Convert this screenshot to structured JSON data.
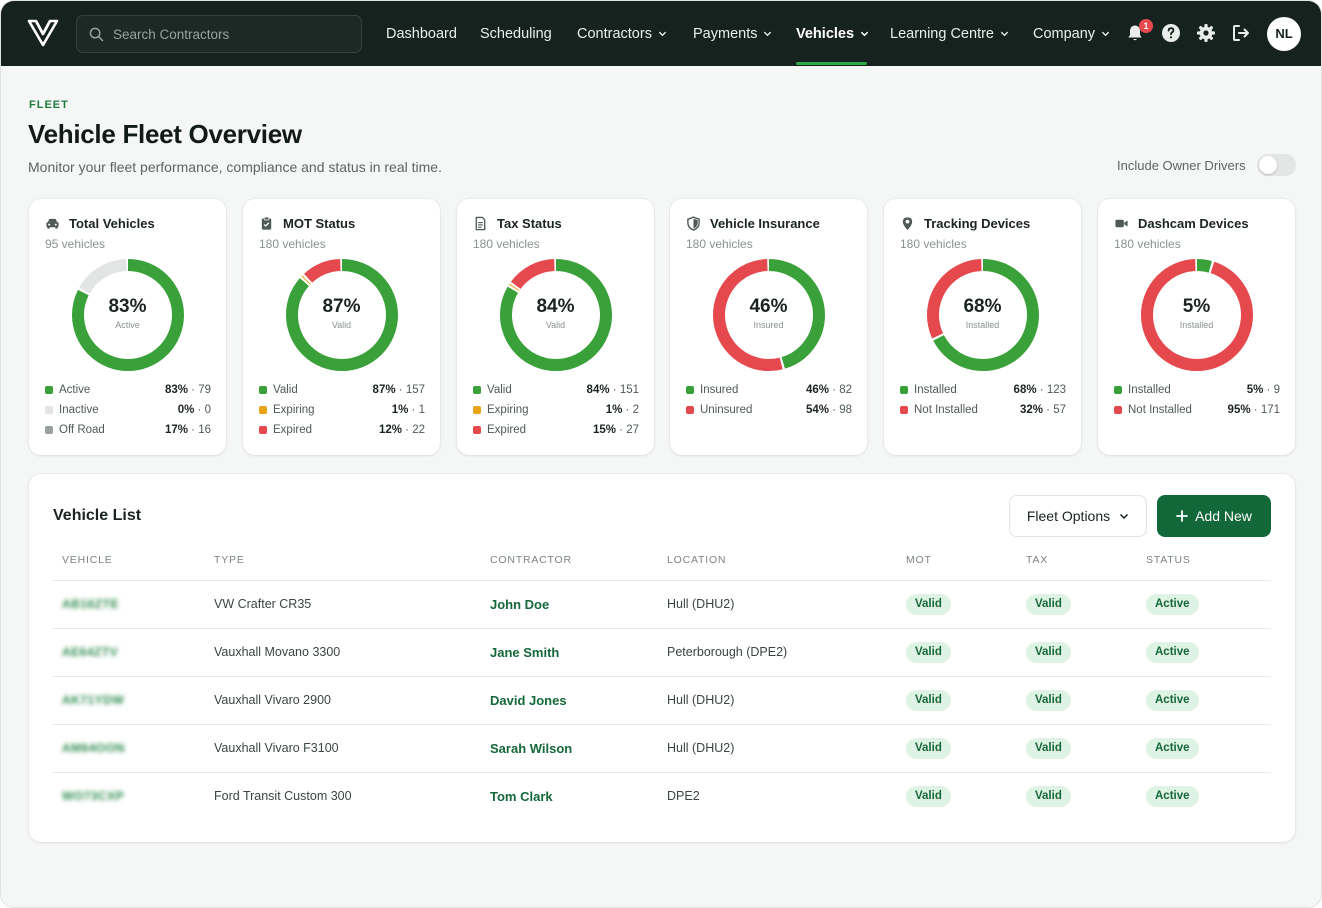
{
  "topbar": {
    "search_placeholder": "Search Contractors",
    "nav": [
      {
        "label": "Dashboard",
        "has_menu": false,
        "active": false
      },
      {
        "label": "Scheduling",
        "has_menu": false,
        "active": false
      },
      {
        "label": "Contractors",
        "has_menu": true,
        "active": false
      },
      {
        "label": "Payments",
        "has_menu": true,
        "active": false
      },
      {
        "label": "Vehicles",
        "has_menu": true,
        "active": true
      },
      {
        "label": "Learning Centre",
        "has_menu": true,
        "active": false
      },
      {
        "label": "Company",
        "has_menu": true,
        "active": false
      }
    ],
    "notification_count": "1",
    "avatar_initials": "NL",
    "icons": [
      "bell-icon",
      "help-icon",
      "gear-icon",
      "logout-icon"
    ]
  },
  "header": {
    "eyebrow": "FLEET",
    "title": "Vehicle Fleet Overview",
    "subtitle": "Monitor your fleet performance, compliance and status in real time.",
    "toggle_label": "Include Owner Drivers",
    "toggle_on": false
  },
  "colors": {
    "green": "#3aa13a",
    "red": "#e5484d",
    "amber": "#e8a317",
    "grey_light": "#e2e5e4",
    "grey": "#9aa19d",
    "brand_dark": "#16221d",
    "brand_primary": "#13683a"
  },
  "chart_data": [
    {
      "type": "pie",
      "title": "Total Vehicles",
      "subtitle": "95 vehicles",
      "icon": "car-icon",
      "center_value": "83%",
      "center_label": "Active",
      "series": [
        {
          "name": "Active",
          "percent": 83,
          "count": 79,
          "color": "#3aa13a",
          "pct_text": "83%",
          "count_text": "79"
        },
        {
          "name": "Inactive",
          "percent": 0,
          "count": 0,
          "color": "#e2e5e4",
          "pct_text": "0%",
          "count_text": "0"
        },
        {
          "name": "Off Road",
          "percent": 17,
          "count": 16,
          "color": "#e2e5e4",
          "legend_color": "#9aa19d",
          "pct_text": "17%",
          "count_text": "16"
        }
      ]
    },
    {
      "type": "pie",
      "title": "MOT Status",
      "subtitle": "180 vehicles",
      "icon": "clipboard-icon",
      "center_value": "87%",
      "center_label": "Valid",
      "series": [
        {
          "name": "Valid",
          "percent": 87,
          "count": 157,
          "color": "#3aa13a",
          "pct_text": "87%",
          "count_text": "157"
        },
        {
          "name": "Expiring",
          "percent": 1,
          "count": 1,
          "color": "#e8a317",
          "pct_text": "1%",
          "count_text": "1"
        },
        {
          "name": "Expired",
          "percent": 12,
          "count": 22,
          "color": "#e5484d",
          "pct_text": "12%",
          "count_text": "22"
        }
      ]
    },
    {
      "type": "pie",
      "title": "Tax Status",
      "subtitle": "180 vehicles",
      "icon": "document-icon",
      "center_value": "84%",
      "center_label": "Valid",
      "series": [
        {
          "name": "Valid",
          "percent": 84,
          "count": 151,
          "color": "#3aa13a",
          "pct_text": "84%",
          "count_text": "151"
        },
        {
          "name": "Expiring",
          "percent": 1,
          "count": 2,
          "color": "#e8a317",
          "pct_text": "1%",
          "count_text": "2"
        },
        {
          "name": "Expired",
          "percent": 15,
          "count": 27,
          "color": "#e5484d",
          "pct_text": "15%",
          "count_text": "27"
        }
      ]
    },
    {
      "type": "pie",
      "title": "Vehicle Insurance",
      "subtitle": "180 vehicles",
      "icon": "shield-icon",
      "center_value": "46%",
      "center_label": "Insured",
      "series": [
        {
          "name": "Insured",
          "percent": 46,
          "count": 82,
          "color": "#3aa13a",
          "pct_text": "46%",
          "count_text": "82"
        },
        {
          "name": "Uninsured",
          "percent": 54,
          "count": 98,
          "color": "#e5484d",
          "pct_text": "54%",
          "count_text": "98"
        }
      ]
    },
    {
      "type": "pie",
      "title": "Tracking Devices",
      "subtitle": "180 vehicles",
      "icon": "location-pin-icon",
      "center_value": "68%",
      "center_label": "Installed",
      "series": [
        {
          "name": "Installed",
          "percent": 68,
          "count": 123,
          "color": "#3aa13a",
          "pct_text": "68%",
          "count_text": "123"
        },
        {
          "name": "Not Installed",
          "percent": 32,
          "count": 57,
          "color": "#e5484d",
          "pct_text": "32%",
          "count_text": "57"
        }
      ]
    },
    {
      "type": "pie",
      "title": "Dashcam Devices",
      "subtitle": "180 vehicles",
      "icon": "video-camera-icon",
      "center_value": "5%",
      "center_label": "Installed",
      "series": [
        {
          "name": "Installed",
          "percent": 5,
          "count": 9,
          "color": "#3aa13a",
          "pct_text": "5%",
          "count_text": "9"
        },
        {
          "name": "Not Installed",
          "percent": 95,
          "count": 171,
          "color": "#e5484d",
          "pct_text": "95%",
          "count_text": "171"
        }
      ]
    }
  ],
  "vehicle_list": {
    "title": "Vehicle List",
    "fleet_options_label": "Fleet Options",
    "add_new_label": "Add New",
    "columns": [
      "VEHICLE",
      "TYPE",
      "CONTRACTOR",
      "LOCATION",
      "MOT",
      "TAX",
      "STATUS"
    ],
    "rows": [
      {
        "vehicle": "AB16ZTE",
        "type": "VW Crafter CR35",
        "contractor": "John Doe",
        "location": "Hull (DHU2)",
        "mot": "Valid",
        "tax": "Valid",
        "status": "Active"
      },
      {
        "vehicle": "AE64ZTV",
        "type": "Vauxhall Movano 3300",
        "contractor": "Jane Smith",
        "location": "Peterborough (DPE2)",
        "mot": "Valid",
        "tax": "Valid",
        "status": "Active"
      },
      {
        "vehicle": "AK71YDW",
        "type": "Vauxhall Vivaro 2900",
        "contractor": "David Jones",
        "location": "Hull (DHU2)",
        "mot": "Valid",
        "tax": "Valid",
        "status": "Active"
      },
      {
        "vehicle": "AM64OON",
        "type": "Vauxhall Vivaro F3100",
        "contractor": "Sarah Wilson",
        "location": "Hull (DHU2)",
        "mot": "Valid",
        "tax": "Valid",
        "status": "Active"
      },
      {
        "vehicle": "WO73CXP",
        "type": "Ford Transit Custom 300",
        "contractor": "Tom Clark",
        "location": "DPE2",
        "mot": "Valid",
        "tax": "Valid",
        "status": "Active"
      }
    ]
  }
}
